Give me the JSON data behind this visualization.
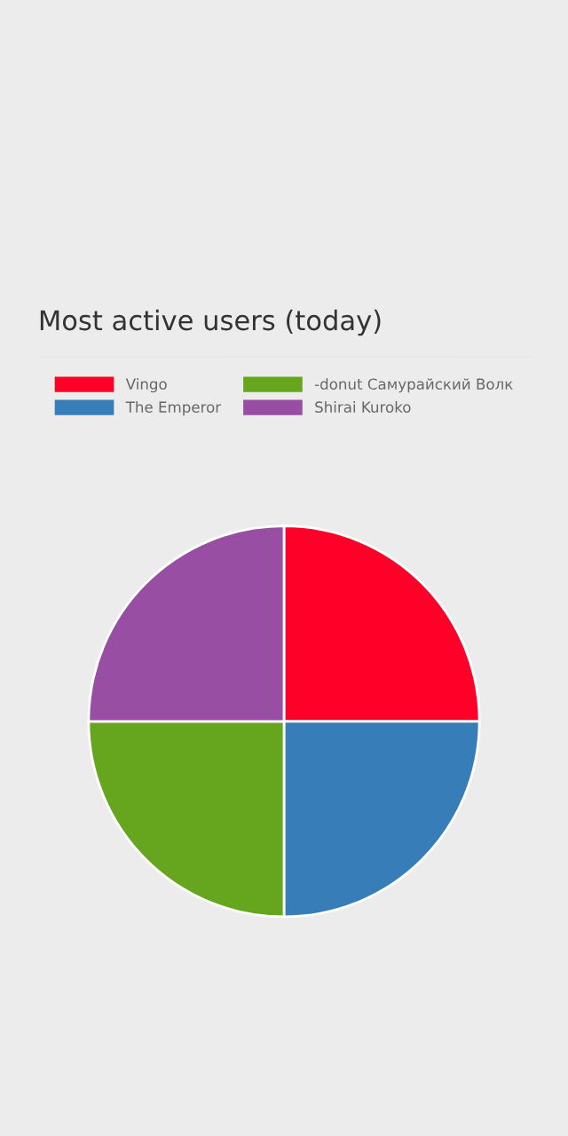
{
  "chart_data": {
    "type": "pie",
    "title": "Most active users (today)",
    "categories": [
      "Vingo",
      "The Emperor",
      "-donut Самурайский Волк",
      "Shirai Kuroko"
    ],
    "values": [
      25,
      25,
      25,
      25
    ],
    "colors": [
      "#ff0029",
      "#377eb8",
      "#66a61e",
      "#984ea3"
    ],
    "legend": "top"
  }
}
